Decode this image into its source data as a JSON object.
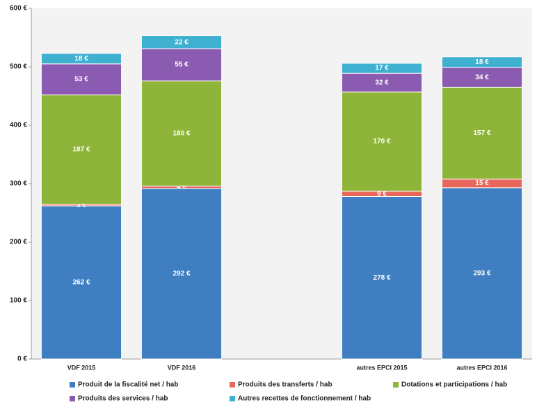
{
  "chart_data": {
    "type": "stacked_bar",
    "categories": [
      "VDF 2015",
      "VDF 2016",
      null,
      "autres EPCI 2015",
      "autres EPCI 2016"
    ],
    "series": [
      {
        "name": "Produit de la fiscalité net / hab",
        "color": "#3f7fc1",
        "values": [
          262,
          292,
          null,
          278,
          293
        ],
        "value_labels": [
          "262 €",
          "292 €",
          null,
          "278 €",
          "293 €"
        ]
      },
      {
        "name": "Produits des transferts / hab",
        "color": "#e8675a",
        "values": [
          3,
          4,
          null,
          9,
          15
        ],
        "value_labels": [
          "3 €",
          "4 €",
          null,
          "9 €",
          "15 €"
        ]
      },
      {
        "name": "Dotations et participations / hab",
        "color": "#8fb43a",
        "values": [
          187,
          180,
          null,
          170,
          157
        ],
        "value_labels": [
          "187 €",
          "180 €",
          null,
          "170 €",
          "157 €"
        ]
      },
      {
        "name": "Produits des services / hab",
        "color": "#8a5bb0",
        "values": [
          53,
          55,
          null,
          32,
          34
        ],
        "value_labels": [
          "53 €",
          "55 €",
          null,
          "32 €",
          "34 €"
        ]
      },
      {
        "name": "Autres recettes de fonctionnement / hab",
        "color": "#3fb0d0",
        "values": [
          18,
          22,
          null,
          17,
          18
        ],
        "value_labels": [
          "18 €",
          "22 €",
          null,
          "17 €",
          "18 €"
        ]
      }
    ],
    "ylim": [
      0,
      600
    ],
    "yticks": [
      {
        "value": 0,
        "label": "0 €"
      },
      {
        "value": 100,
        "label": "100 €"
      },
      {
        "value": 200,
        "label": "200 €"
      },
      {
        "value": 300,
        "label": "300 €"
      },
      {
        "value": 400,
        "label": "400 €"
      },
      {
        "value": 500,
        "label": "500 €"
      },
      {
        "value": 600,
        "label": "600 €"
      }
    ],
    "legend": "bottom"
  }
}
